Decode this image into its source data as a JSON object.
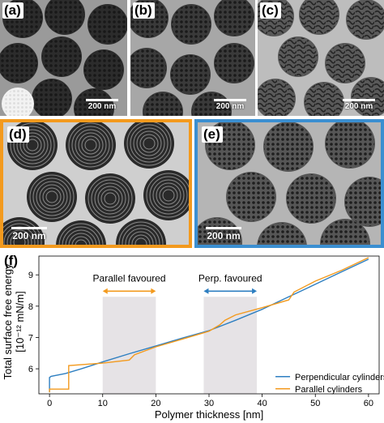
{
  "panels": [
    {
      "label": "(a)",
      "scale": "200 nm"
    },
    {
      "label": "(b)",
      "scale": "200 nm"
    },
    {
      "label": "(c)",
      "scale": "200 nm"
    },
    {
      "label": "(d)",
      "scale": "200 nm",
      "frame_color": "#f39a1e"
    },
    {
      "label": "(e)",
      "scale": "200 nm",
      "frame_color": "#3b8fd1"
    }
  ],
  "chart_data": {
    "type": "line",
    "panel_label": "(f)",
    "xlabel": "Polymer thickness [nm]",
    "ylabel_line1": "Total surface free energy",
    "ylabel_line2": "[10⁻¹² mN/m]",
    "xlim": [
      -2,
      62
    ],
    "ylim": [
      5.2,
      9.6
    ],
    "xticks": [
      0,
      10,
      20,
      30,
      40,
      50,
      60
    ],
    "yticks": [
      6,
      7,
      8,
      9
    ],
    "grid": false,
    "legend_position": "bottom-right",
    "shaded_regions": [
      [
        10,
        20
      ],
      [
        29,
        39
      ]
    ],
    "annotations": [
      {
        "text": "Parallel favoured",
        "color": "#f39a1e",
        "x_from": 10,
        "x_to": 20
      },
      {
        "text": "Perp. favoured",
        "color": "#2e7fc1",
        "x_from": 29,
        "x_to": 39
      }
    ],
    "series": [
      {
        "name": "Perpendicular cylinders",
        "color": "#2e7fc1",
        "x": [
          0,
          0,
          0.3,
          3,
          6,
          10,
          15,
          20,
          25,
          30,
          35,
          40,
          45,
          50,
          55,
          60
        ],
        "y": [
          5.25,
          5.72,
          5.76,
          5.85,
          6.0,
          6.22,
          6.48,
          6.73,
          6.98,
          7.22,
          7.55,
          7.9,
          8.3,
          8.7,
          9.1,
          9.5
        ]
      },
      {
        "name": "Parallel cylinders",
        "color": "#f39a1e",
        "x": [
          0,
          0,
          3.4,
          3.6,
          3.6,
          10,
          15,
          16,
          20,
          25,
          30,
          32,
          33,
          35,
          40,
          45,
          46,
          50,
          55,
          60
        ],
        "y": [
          5.25,
          5.35,
          5.35,
          5.35,
          6.1,
          6.18,
          6.28,
          6.45,
          6.7,
          6.95,
          7.2,
          7.4,
          7.55,
          7.72,
          7.95,
          8.2,
          8.45,
          8.8,
          9.15,
          9.55
        ]
      }
    ]
  }
}
